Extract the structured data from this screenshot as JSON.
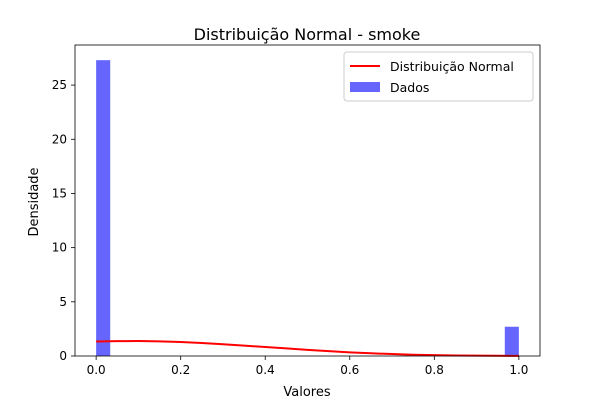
{
  "chart_data": {
    "type": "bar",
    "title": "Distribuição Normal - smoke",
    "xlabel": "Valores",
    "ylabel": "Densidade",
    "xlim": [
      -0.05,
      1.05
    ],
    "ylim": [
      0,
      28.7
    ],
    "xticks": [
      0.0,
      0.2,
      0.4,
      0.6,
      0.8,
      1.0
    ],
    "xtick_labels": [
      "0.0",
      "0.2",
      "0.4",
      "0.6",
      "0.8",
      "1.0"
    ],
    "yticks": [
      0,
      5,
      10,
      15,
      20,
      25
    ],
    "ytick_labels": [
      "0",
      "5",
      "10",
      "15",
      "20",
      "25"
    ],
    "legend_position": "top-right",
    "series": [
      {
        "name": "Dados",
        "kind": "histogram",
        "color": "#6666ff",
        "bins": [
          {
            "x0": 0.0,
            "x1": 0.0333,
            "value": 27.3
          },
          {
            "x0": 0.9667,
            "x1": 1.0,
            "value": 2.7
          }
        ]
      },
      {
        "name": "Distribuição Normal",
        "kind": "line",
        "color": "#ff0000",
        "x": [
          0.0,
          0.05,
          0.1,
          0.15,
          0.2,
          0.25,
          0.3,
          0.35,
          0.4,
          0.45,
          0.5,
          0.55,
          0.6,
          0.65,
          0.7,
          0.75,
          0.8,
          0.85,
          0.9,
          0.95,
          1.0
        ],
        "y": [
          1.34,
          1.37,
          1.38,
          1.35,
          1.29,
          1.2,
          1.09,
          0.96,
          0.83,
          0.7,
          0.57,
          0.45,
          0.34,
          0.25,
          0.18,
          0.12,
          0.08,
          0.05,
          0.03,
          0.02,
          0.01
        ]
      }
    ]
  }
}
